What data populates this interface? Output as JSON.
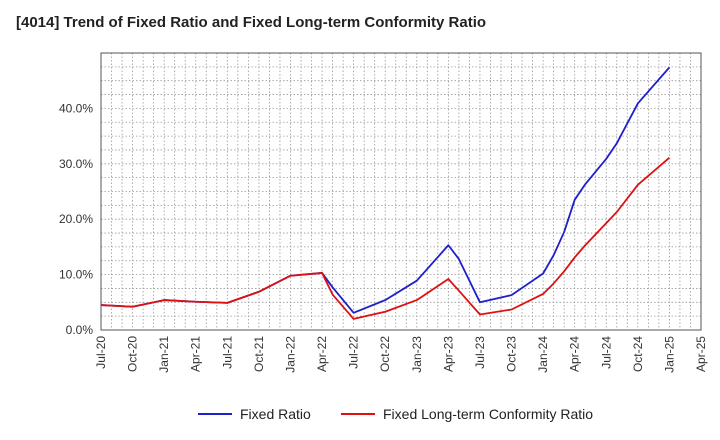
{
  "title": "[4014]  Trend of Fixed Ratio and Fixed Long-term Conformity Ratio",
  "chart_data": {
    "type": "line",
    "title": "[4014]  Trend of Fixed Ratio and Fixed Long-term Conformity Ratio",
    "xlabel": "",
    "ylabel": "",
    "x_ticks": [
      "Jul-20",
      "Oct-20",
      "Jan-21",
      "Apr-21",
      "Jul-21",
      "Oct-21",
      "Jan-22",
      "Apr-22",
      "Jul-22",
      "Oct-22",
      "Jan-23",
      "Apr-23",
      "Jul-23",
      "Oct-23",
      "Jan-24",
      "Apr-24",
      "Jul-24",
      "Oct-24",
      "Jan-25",
      "Apr-25"
    ],
    "y_ticks": [
      "0.0%",
      "10.0%",
      "20.0%",
      "30.0%",
      "40.0%"
    ],
    "ylim": [
      0,
      50
    ],
    "grid": true,
    "legend_position": "bottom",
    "x": [
      "Jul-20",
      "Oct-20",
      "Jan-21",
      "Apr-21",
      "Jul-21",
      "Oct-21",
      "Jan-22",
      "Apr-22",
      "May-22",
      "Jul-22",
      "Oct-22",
      "Jan-23",
      "Apr-23",
      "May-23",
      "Jul-23",
      "Oct-23",
      "Jan-24",
      "Feb-24",
      "Mar-24",
      "Apr-24",
      "May-24",
      "Jul-24",
      "Aug-24",
      "Oct-24",
      "Jan-25"
    ],
    "series": [
      {
        "name": "Fixed Ratio",
        "color": "#1f1fcc",
        "values": [
          4.5,
          4.2,
          5.4,
          5.1,
          4.9,
          6.9,
          9.8,
          10.3,
          7.7,
          3.1,
          5.4,
          8.9,
          15.3,
          12.8,
          5.0,
          6.3,
          10.2,
          13.5,
          17.7,
          23.5,
          26.3,
          30.9,
          33.7,
          40.9,
          47.4
        ]
      },
      {
        "name": "Fixed Long-term Conformity Ratio",
        "color": "#dd1111",
        "values": [
          4.5,
          4.2,
          5.4,
          5.1,
          4.9,
          6.9,
          9.8,
          10.3,
          6.4,
          2.0,
          3.3,
          5.4,
          9.2,
          7.1,
          2.8,
          3.7,
          6.5,
          8.4,
          10.6,
          13.1,
          15.3,
          19.3,
          21.3,
          26.2,
          31.1
        ]
      }
    ]
  }
}
